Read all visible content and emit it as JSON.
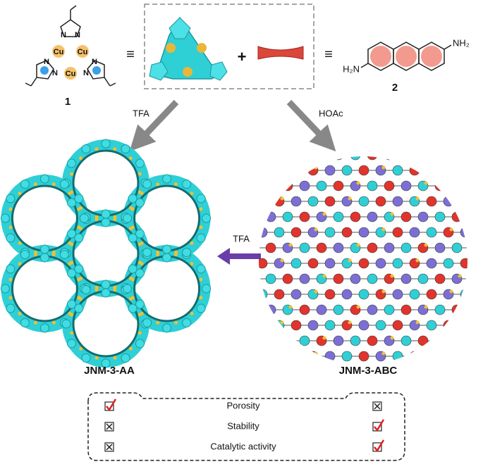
{
  "compound_1": {
    "atoms": [
      "N",
      "N",
      "Cu",
      "Cu",
      "N",
      "N",
      "Cu",
      "N",
      "N"
    ],
    "label": "1"
  },
  "compound_2": {
    "amine_right": "NH₂",
    "amine_left": "H₂N",
    "label": "2"
  },
  "symbols": {
    "equiv_left": "≡",
    "plus": "+",
    "equiv_right": "≡"
  },
  "arrows": {
    "left": "TFA",
    "right": "HOAc",
    "conversion": "TFA"
  },
  "structures": {
    "left": "JNM-3-AA",
    "right": "JNM-3-ABC"
  },
  "comparison": {
    "rows": [
      "Porosity",
      "Stability",
      "Catalytic activity"
    ]
  }
}
